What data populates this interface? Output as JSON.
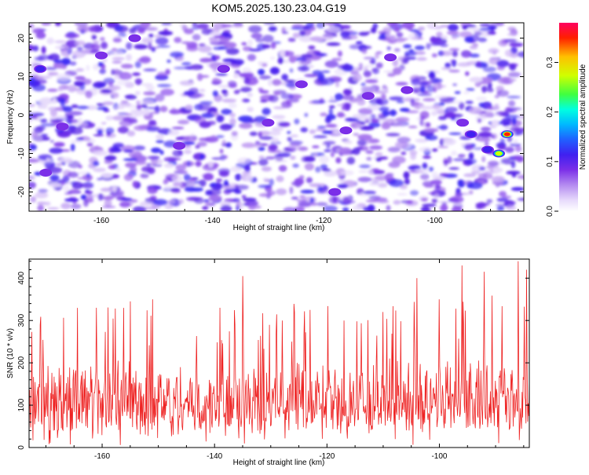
{
  "title": "KOM5.2025.130.23.04.G19",
  "colors": {
    "snr_line": "#ee2222",
    "spectrogram_background": "#ffffff",
    "colormap": [
      "#ffffff",
      "#e6d9fb",
      "#b48af0",
      "#7b2fe8",
      "#4020f0",
      "#2060ff",
      "#00b8ff",
      "#00ffe0",
      "#40ff40",
      "#d0ff00",
      "#ffc000",
      "#ff2000",
      "#ff0060"
    ]
  },
  "chart_data": [
    {
      "type": "heatmap",
      "xlabel": "Height of straight line (km)",
      "ylabel": "Frequency (Hz)",
      "xlim": [
        -173,
        -84
      ],
      "ylim": [
        -25,
        24
      ],
      "xticks": [
        "-160",
        "-140",
        "-120",
        "-100"
      ],
      "xtick_values": [
        -160,
        -140,
        -120,
        -100
      ],
      "yticks": [
        "-20",
        "-10",
        "0",
        "10",
        "20"
      ],
      "ytick_values": [
        -20,
        -10,
        0,
        10,
        20
      ],
      "colorbar": {
        "label": "Normalized spectral amplitude",
        "range": [
          0,
          0.38
        ],
        "ticks": [
          "0.0",
          "0.1",
          "0.2",
          "0.3"
        ],
        "tick_values": [
          0,
          0.1,
          0.2,
          0.3
        ]
      },
      "peaks": [
        {
          "x": -87,
          "y": -5,
          "value": 0.36
        },
        {
          "x": -88.5,
          "y": -10,
          "value": 0.3
        },
        {
          "x": -90.5,
          "y": -9,
          "value": 0.16
        },
        {
          "x": -93.5,
          "y": -5,
          "value": 0.15
        },
        {
          "x": -171,
          "y": 12,
          "value": 0.15
        },
        {
          "x": -105,
          "y": 6.5,
          "value": 0.13
        },
        {
          "x": -160,
          "y": 15.5,
          "value": 0.12
        },
        {
          "x": -146,
          "y": -8,
          "value": 0.11
        },
        {
          "x": -167,
          "y": -3,
          "value": 0.11
        },
        {
          "x": -95,
          "y": -2,
          "value": 0.11
        },
        {
          "x": -118,
          "y": -20,
          "value": 0.11
        },
        {
          "x": -154,
          "y": 20,
          "value": 0.1
        },
        {
          "x": -130,
          "y": -2,
          "value": 0.1
        },
        {
          "x": -112,
          "y": 5,
          "value": 0.1
        },
        {
          "x": -116,
          "y": -4,
          "value": 0.1
        },
        {
          "x": -170,
          "y": -15,
          "value": 0.1
        },
        {
          "x": -108,
          "y": 15,
          "value": 0.1
        },
        {
          "x": -138,
          "y": 12,
          "value": 0.1
        },
        {
          "x": -124,
          "y": 8,
          "value": 0.1
        }
      ]
    },
    {
      "type": "line",
      "xlabel": "Height of straight line (km)",
      "ylabel": "SNR (10 * v/v)",
      "xlim": [
        -173,
        -84
      ],
      "ylim": [
        0,
        445
      ],
      "xticks": [
        "-160",
        "-140",
        "-120",
        "-100"
      ],
      "xtick_values": [
        -160,
        -140,
        -120,
        -100
      ],
      "yticks": [
        "0",
        "100",
        "200",
        "300",
        "400"
      ],
      "ytick_values": [
        0,
        100,
        200,
        300,
        400
      ],
      "series": [
        {
          "x_range": [
            -173,
            -84
          ],
          "n_points": 900,
          "typical_low": 40,
          "typical_high": 220,
          "mean": 125,
          "peaks": [
            {
              "x": -161,
              "y": 330
            },
            {
              "x": -155,
              "y": 345
            },
            {
              "x": -151,
              "y": 350
            },
            {
              "x": -135,
              "y": 405
            },
            {
              "x": -139,
              "y": 330
            },
            {
              "x": -128,
              "y": 300
            },
            {
              "x": -123,
              "y": 325
            },
            {
              "x": -110,
              "y": 320
            },
            {
              "x": -104,
              "y": 400
            },
            {
              "x": -96,
              "y": 430
            },
            {
              "x": -92,
              "y": 415
            },
            {
              "x": -86,
              "y": 440
            },
            {
              "x": -84.5,
              "y": 420
            },
            {
              "x": -171,
              "y": 290
            },
            {
              "x": -117,
              "y": 300
            },
            {
              "x": -100,
              "y": 350
            }
          ]
        }
      ]
    }
  ]
}
